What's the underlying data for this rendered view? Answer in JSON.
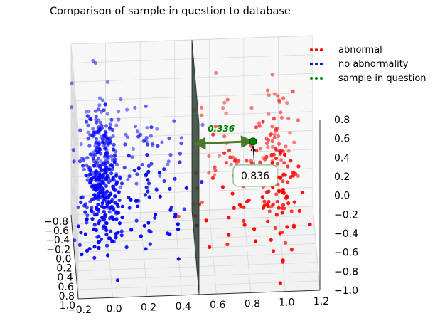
{
  "chart_data": {
    "type": "scatter",
    "title": "Comparison of sample in question to database",
    "colors": {
      "abnormal": "#ff0000",
      "no_abnormality": "#0000ff",
      "sample": "#008000",
      "plane": "#2f3f34",
      "arrow": "#4a7a2a"
    },
    "legend_position": "top-right",
    "legend": [
      {
        "label": "abnormal",
        "color": "#ff0000"
      },
      {
        "label": "no abnormality",
        "color": "#0000ff"
      },
      {
        "label": "sample in question",
        "color": "#008000"
      }
    ],
    "grid": true,
    "xlim": [
      -0.2,
      1.2
    ],
    "ylim": [
      -0.8,
      1.0
    ],
    "zlim": [
      -1.0,
      0.8
    ],
    "x_ticks": [
      "−0.2",
      "0.0",
      "0.2",
      "0.4",
      "0.6",
      "0.8",
      "1.0",
      "1.2"
    ],
    "y_ticks": [
      "−0.8",
      "−0.6",
      "−0.4",
      "−0.2",
      "0.0",
      "0.2",
      "0.4",
      "0.6",
      "0.8",
      "1.0"
    ],
    "z_ticks": [
      "0.8",
      "0.6",
      "0.4",
      "0.2",
      "0.0",
      "−0.2",
      "−0.4",
      "−0.6",
      "−0.8",
      "−1.0"
    ],
    "clusters": [
      {
        "series": "no abnormality",
        "x_center": -0.05,
        "x_spread": 0.06,
        "count": 400
      },
      {
        "series": "no abnormality",
        "x_center": 0.2,
        "x_spread": 0.14,
        "count": 100
      },
      {
        "series": "abnormal",
        "x_center": 0.98,
        "x_spread": 0.06,
        "count": 130
      },
      {
        "series": "abnormal",
        "x_center": 0.72,
        "x_spread": 0.14,
        "count": 80
      }
    ],
    "decision_plane_x": 0.5,
    "sample_point": {
      "x": 0.836,
      "y": 0.0,
      "z": 0.1
    },
    "distance_arrow_label": "0.336",
    "callout_label": "0.836"
  }
}
